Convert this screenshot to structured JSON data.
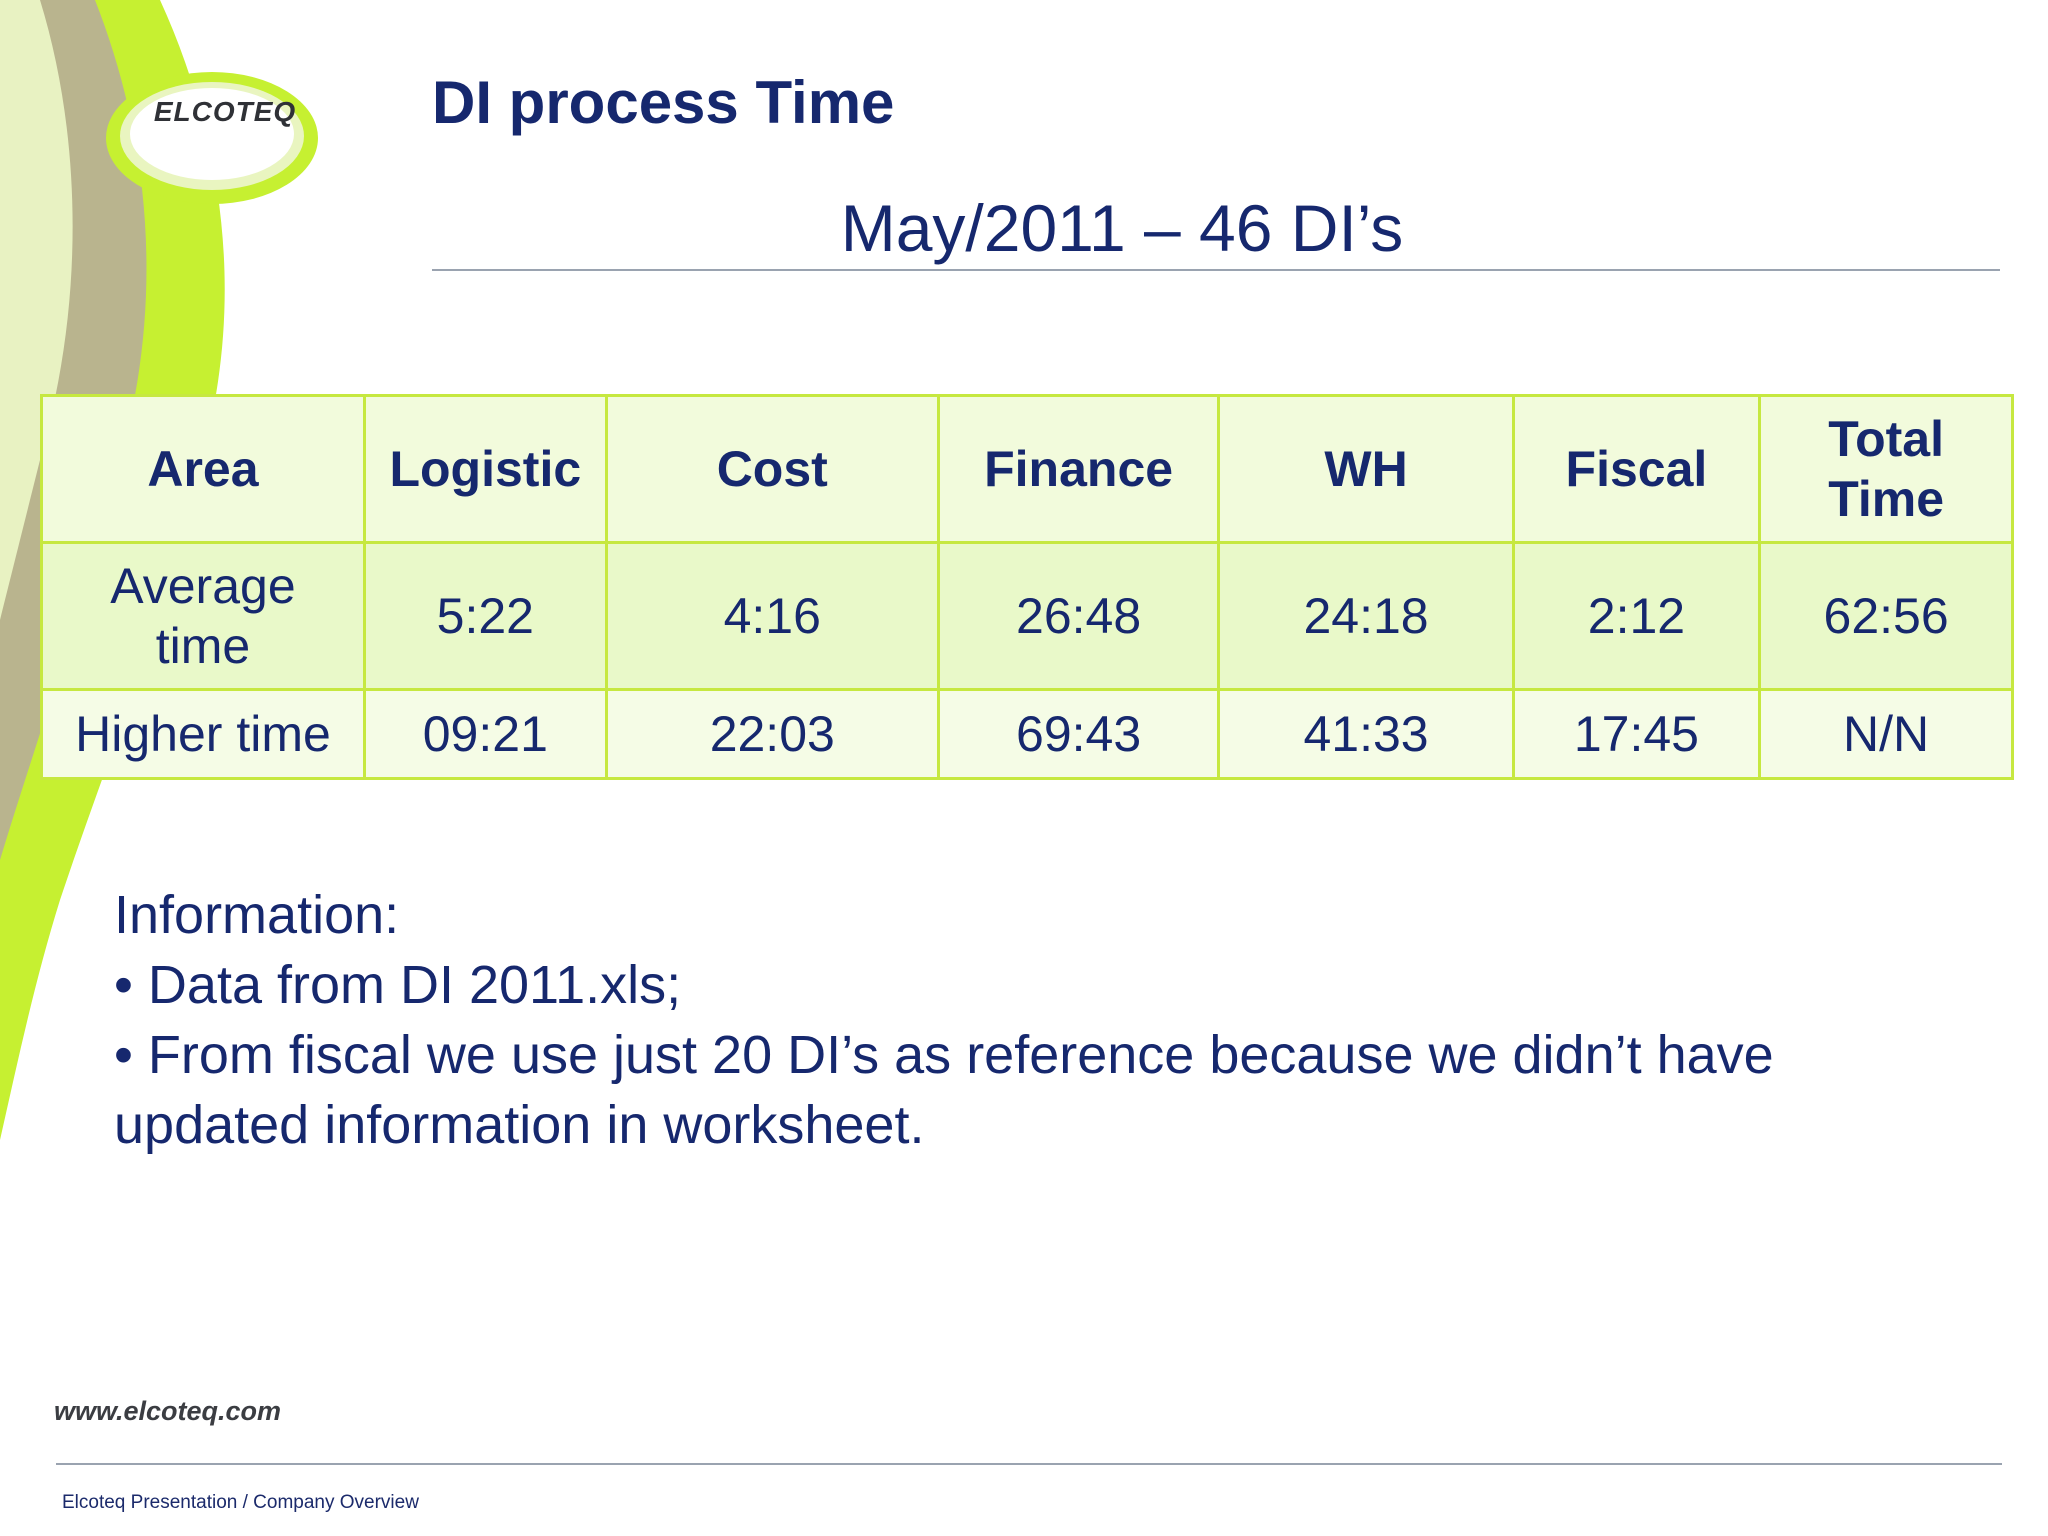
{
  "brand": {
    "logo_text": "ELCOTEQ",
    "colors": {
      "lime": "#c6f031",
      "olive": "#b9b48e",
      "navy": "#16286e"
    }
  },
  "slide": {
    "title": "DI process Time",
    "subtitle": "May/2011 – 46 DI’s"
  },
  "table": {
    "headers": [
      "Area",
      "Logistic",
      "Cost",
      "Finance",
      "WH",
      "Fiscal",
      "Total Time"
    ],
    "rows": [
      [
        "Average time",
        "5:22",
        "4:16",
        "26:48",
        "24:18",
        "2:12",
        "62:56"
      ],
      [
        "Higher time",
        "09:21",
        "22:03",
        "69:43",
        "41:33",
        "17:45",
        "N/N"
      ]
    ]
  },
  "info": {
    "heading": "Information:",
    "bullets": [
      "• Data from DI 2011.xls;",
      "• From fiscal we use just 20 DI’s as reference because we didn’t have updated information in worksheet."
    ]
  },
  "footer": {
    "website": "www.elcoteq.com",
    "caption": "Elcoteq Presentation / Company Overview"
  }
}
